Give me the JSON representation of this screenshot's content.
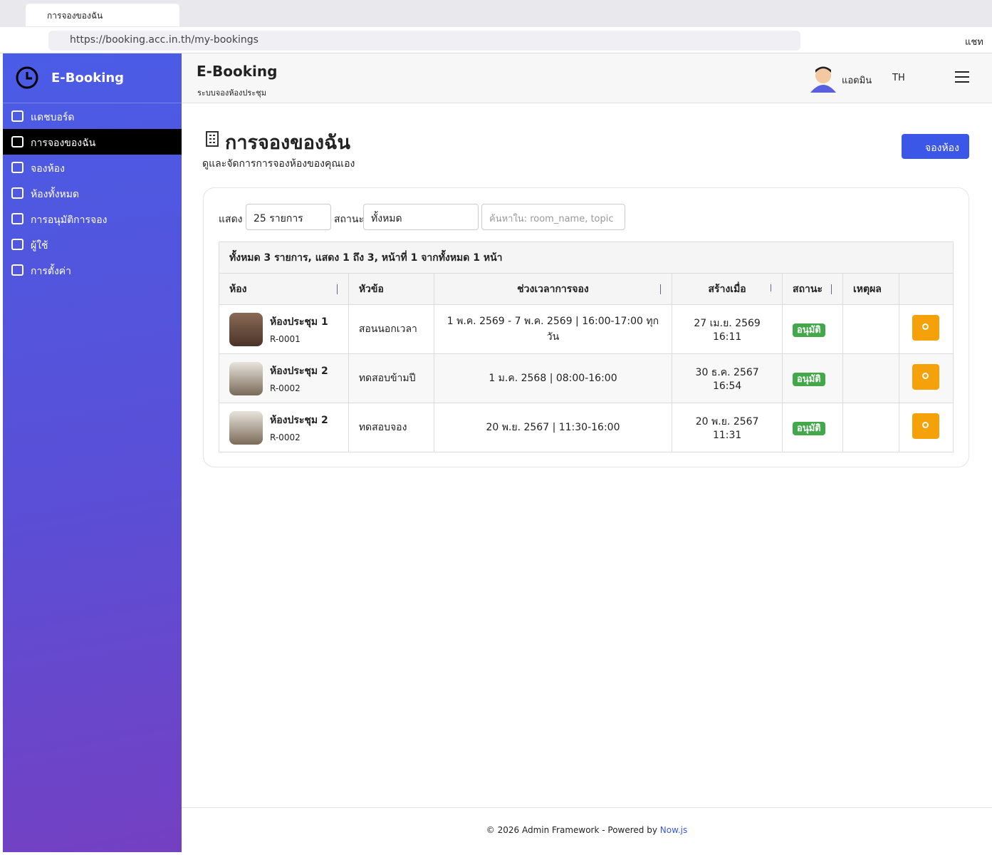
{
  "browser": {
    "tab_title": "การจองของฉัน",
    "url": "https://booking.acc.in.th/my-bookings",
    "chat": "แชท"
  },
  "sidebar": {
    "brand": "E-Booking",
    "menu": [
      "แดชบอร์ด",
      "การจองของฉัน",
      "จองห้อง",
      "ห้องทั้งหมด",
      "การอนุมัติการจอง",
      "ผู้ใช้",
      "การตั้งค่า"
    ]
  },
  "header": {
    "title": "E-Booking",
    "subtitle": "ระบบจองห้องประชุม",
    "user": "แอดมิน",
    "lang": "TH"
  },
  "page": {
    "title": "การจองของฉัน",
    "subtitle": "ดูและจัดการการจองห้องของคุณเอง",
    "button": "จองห้อง"
  },
  "filters": {
    "show_label": "แสดง",
    "show_value": "25 รายการ",
    "status_label": "สถานะ",
    "status_value": "ทั้งหมด",
    "search_placeholder": "ค้นหาใน: room_name, topic"
  },
  "table": {
    "summary": "ทั้งหมด 3 รายการ, แสดง 1 ถึง 3, หน้าที่ 1 จากทั้งหมด 1 หน้า",
    "columns": [
      "ห้อง",
      "หัวข้อ",
      "ช่วงเวลาการจอง",
      "สร้างเมื่อ",
      "สถานะ",
      "เหตุผล"
    ],
    "rows": [
      {
        "room": "ห้องประชุม 1",
        "code": "R-0001",
        "topic": "สอนนอกเวลา",
        "period": "1 พ.ค. 2569 - 7 พ.ค. 2569 | 16:00-17:00 ทุกวัน",
        "created": "27 เม.ย. 2569 16:11",
        "status": "อนุมัติ"
      },
      {
        "room": "ห้องประชุม 2",
        "code": "R-0002",
        "topic": "ทดสอบข้ามปี",
        "period": "1 ม.ค. 2568 | 08:00-16:00",
        "created": "30 ธ.ค. 2567 16:54",
        "status": "อนุมัติ"
      },
      {
        "room": "ห้องประชุม 2",
        "code": "R-0002",
        "topic": "ทดสอบจอง",
        "period": "20 พ.ย. 2567 | 11:30-16:00",
        "created": "20 พ.ย. 2567 11:31",
        "status": "อนุมัติ"
      }
    ]
  },
  "footer": {
    "text": "© 2026 Admin Framework - Powered by",
    "link": "Now.js"
  }
}
